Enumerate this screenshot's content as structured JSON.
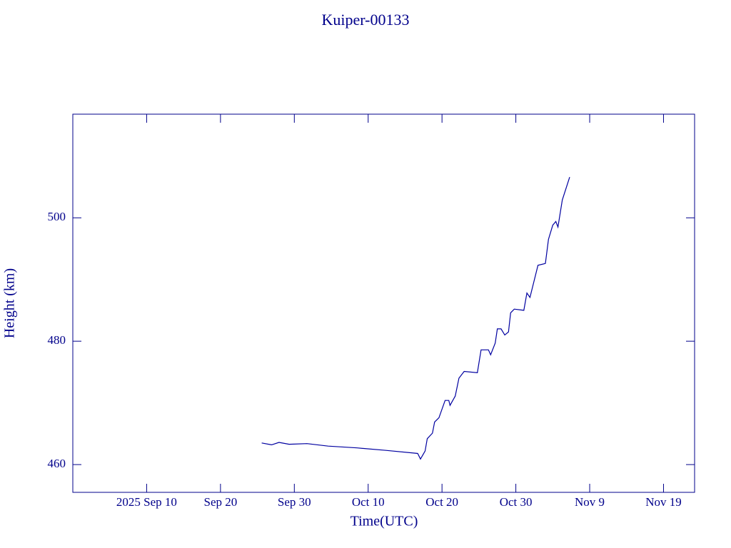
{
  "chart_data": {
    "type": "line",
    "title": "Kuiper-00133",
    "xlabel": "Time(UTC)",
    "ylabel": "Height (km)",
    "color": "#0000a0",
    "x": [
      "2025-09-25T14:00",
      "2025-09-26T22:00",
      "2025-09-27T22:00",
      "2025-09-29T07:00",
      "2025-10-01T17:00",
      "2025-10-04T14:00",
      "2025-10-08T12:00",
      "2025-10-12T10:00",
      "2025-10-16T17:00",
      "2025-10-17T02:00",
      "2025-10-17T17:00",
      "2025-10-18T00:00",
      "2025-10-18T17:00",
      "2025-10-19T00:00",
      "2025-10-19T14:00",
      "2025-10-20T10:00",
      "2025-10-20T22:00",
      "2025-10-21T02:00",
      "2025-10-21T19:00",
      "2025-10-22T07:00",
      "2025-10-23T00:00",
      "2025-10-24T19:00",
      "2025-10-25T07:00",
      "2025-10-26T07:00",
      "2025-10-26T14:00",
      "2025-10-27T05:00",
      "2025-10-27T12:00",
      "2025-10-28T00:00",
      "2025-10-28T12:00",
      "2025-10-29T00:00",
      "2025-10-29T07:00",
      "2025-10-29T19:00",
      "2025-10-31T02:00",
      "2025-10-31T12:00",
      "2025-10-31T22:00",
      "2025-11-02T00:00",
      "2025-11-03T00:00",
      "2025-11-03T10:00",
      "2025-11-04T00:00",
      "2025-11-04T10:00",
      "2025-11-04T17:00",
      "2025-11-05T07:00",
      "2025-11-06T07:00"
    ],
    "values": [
      463.5,
      463.2,
      463.6,
      463.3,
      463.4,
      463.0,
      462.7,
      462.3,
      461.8,
      460.9,
      462.2,
      464.2,
      465.1,
      466.9,
      467.6,
      470.4,
      470.4,
      469.6,
      471.1,
      474.0,
      475.1,
      474.9,
      478.6,
      478.6,
      477.8,
      479.7,
      482.0,
      482.0,
      481.0,
      481.5,
      484.6,
      485.2,
      485.0,
      487.8,
      487.1,
      492.3,
      492.6,
      496.5,
      498.8,
      499.4,
      498.5,
      502.9,
      506.6
    ],
    "xlim": [
      "2025-08-31T00:00",
      "2025-11-23T05:00"
    ],
    "xticks": [
      {
        "value": "2025-09-10T00:00",
        "label": "2025 Sep 10"
      },
      {
        "value": "2025-09-20T00:00",
        "label": "Sep 20"
      },
      {
        "value": "2025-09-30T00:00",
        "label": "Sep 30"
      },
      {
        "value": "2025-10-10T00:00",
        "label": "Oct 10"
      },
      {
        "value": "2025-10-20T00:00",
        "label": "Oct 20"
      },
      {
        "value": "2025-10-30T00:00",
        "label": "Oct 30"
      },
      {
        "value": "2025-11-09T00:00",
        "label": "Nov 9"
      },
      {
        "value": "2025-11-19T00:00",
        "label": "Nov 19"
      }
    ],
    "ylim": [
      455.5,
      516.8
    ],
    "yticks": [
      460,
      480,
      500
    ]
  }
}
